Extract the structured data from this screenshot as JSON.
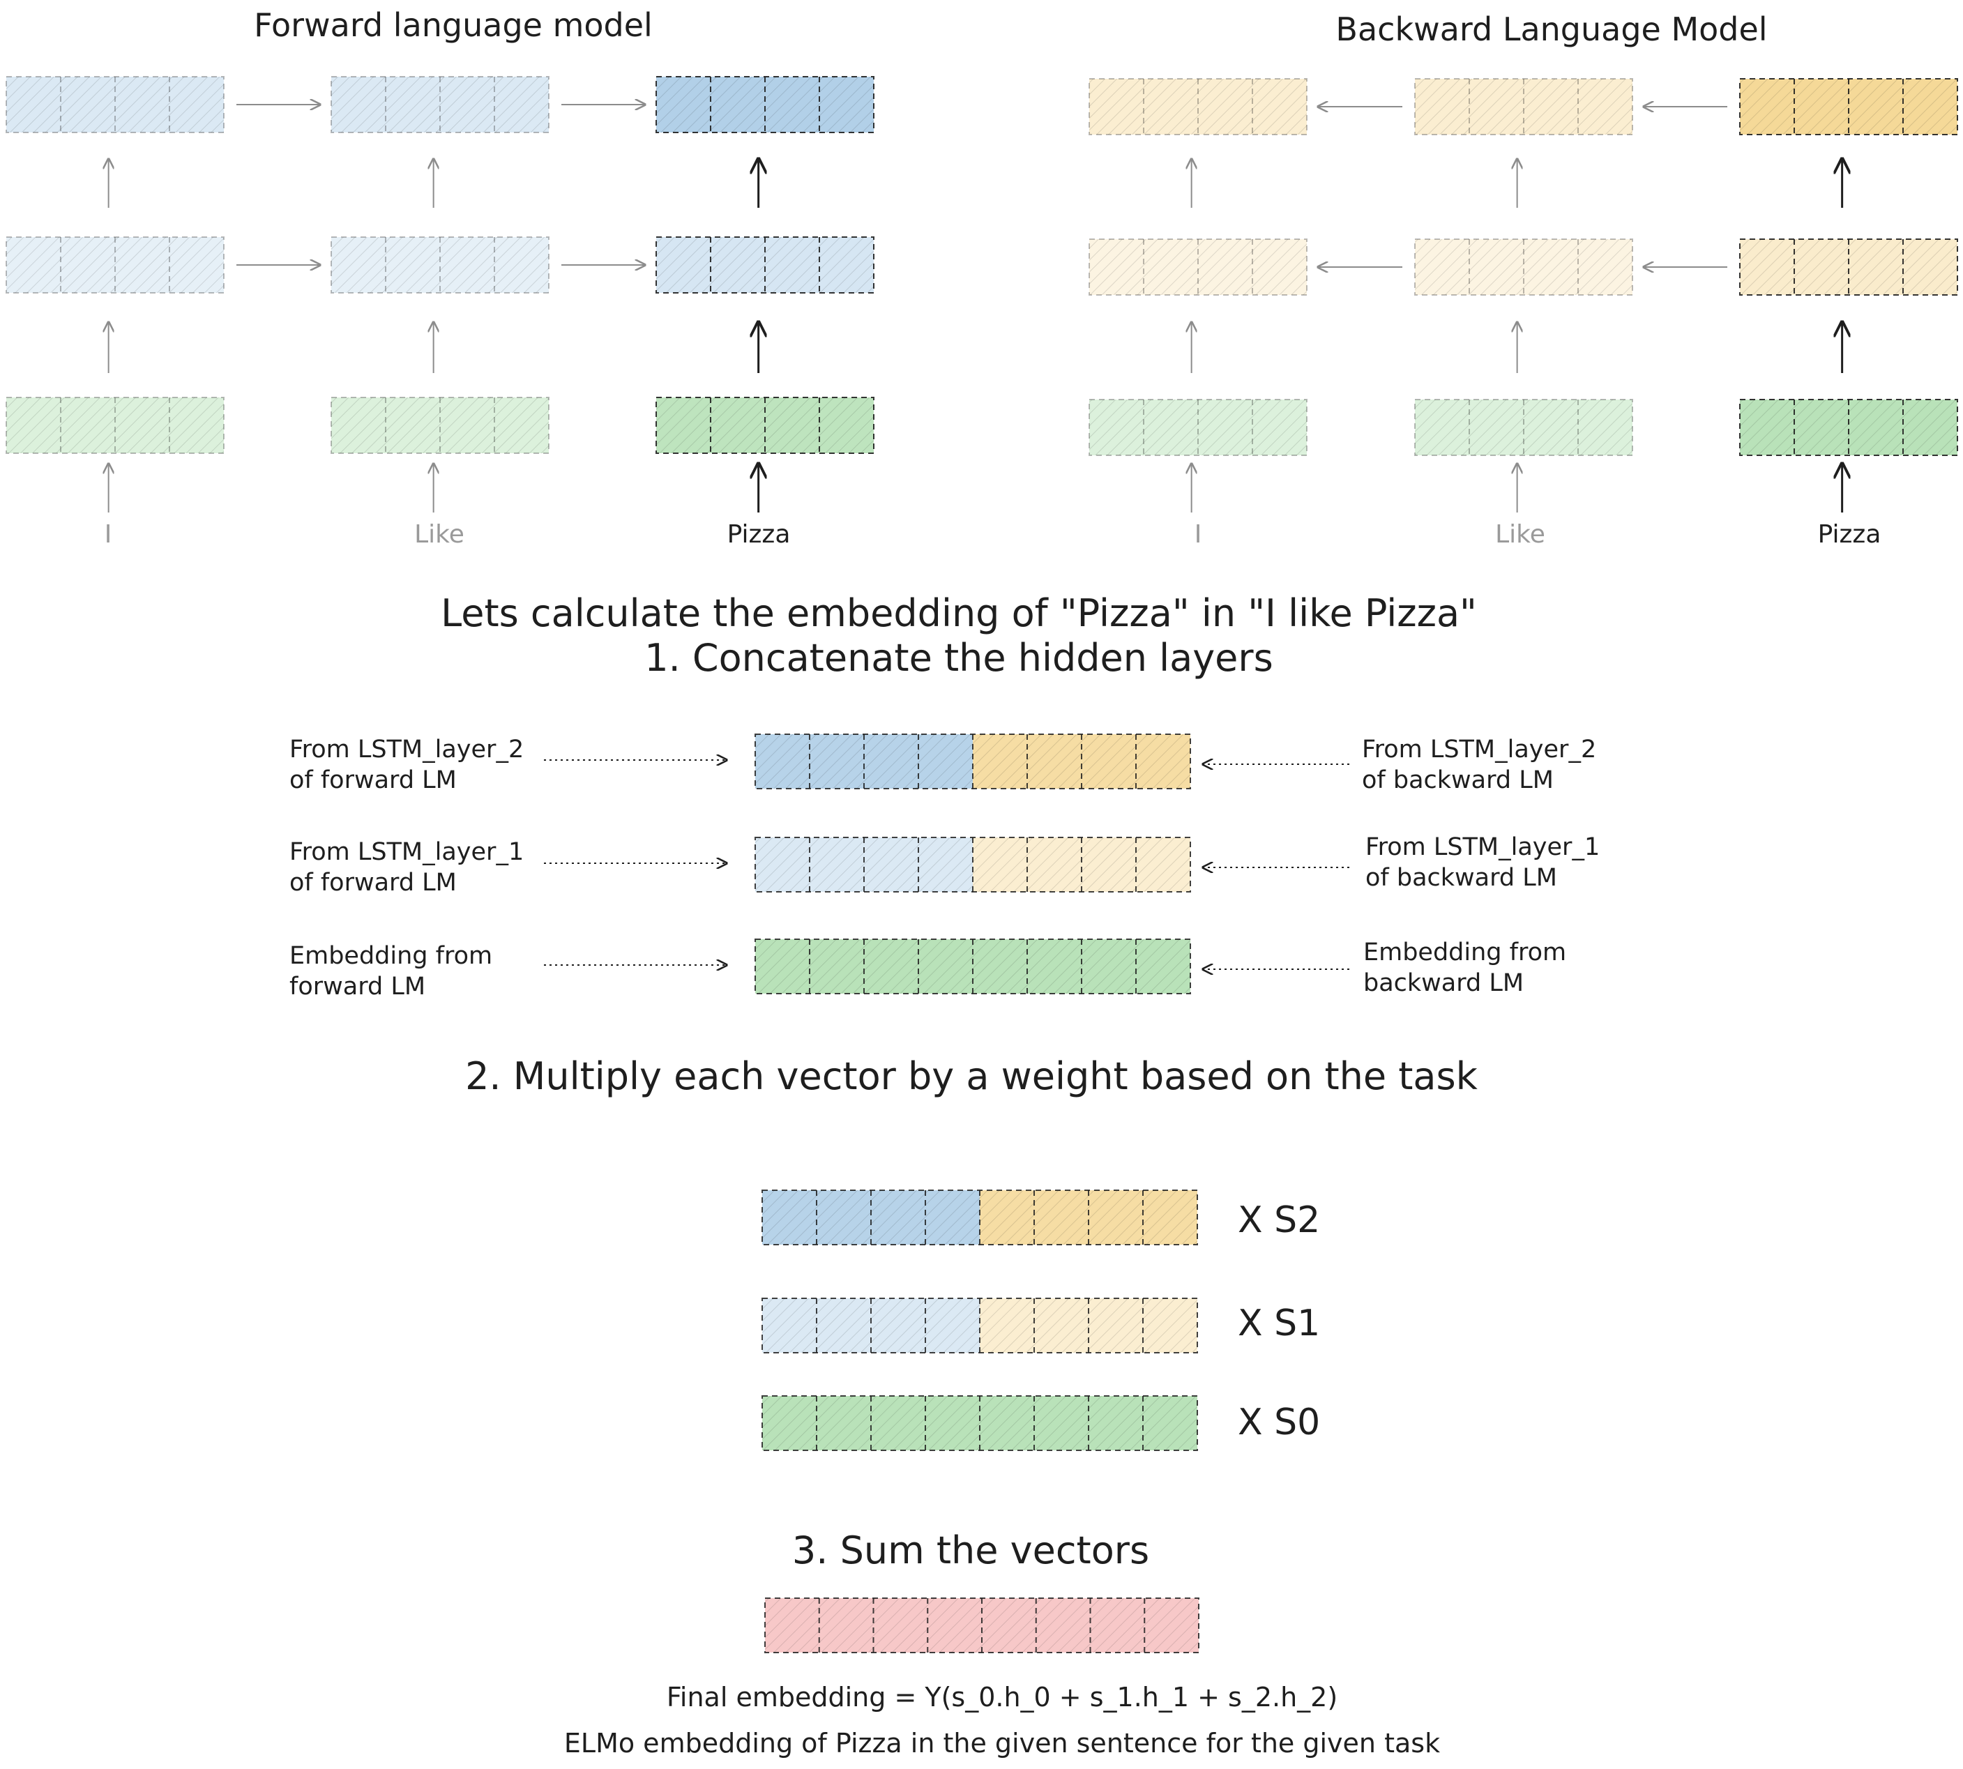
{
  "forward_model": {
    "title": "Forward language model",
    "words": [
      "I",
      "Like",
      "Pizza"
    ]
  },
  "backward_model": {
    "title": "Backward Language Model",
    "words": [
      "I",
      "Like",
      "Pizza"
    ]
  },
  "heading": {
    "line1": "Lets calculate the embedding of \"Pizza\" in \"I like Pizza\"",
    "line2": "1. Concatenate the hidden layers"
  },
  "concat_rows": [
    {
      "left_line1": "From LSTM_layer_2",
      "left_line2": "of forward LM",
      "right_line1": "From LSTM_layer_2",
      "right_line2": "of backward LM"
    },
    {
      "left_line1": "From LSTM_layer_1",
      "left_line2": "of forward LM",
      "right_line1": "From LSTM_layer_1",
      "right_line2": "of backward LM"
    },
    {
      "left_line1": "Embedding from",
      "left_line2": "forward LM",
      "right_line1": "Embedding from",
      "right_line2": "backward LM"
    }
  ],
  "step2": {
    "title": "2. Multiply each vector by a weight based on the task",
    "multipliers": [
      "X  S2",
      "X  S1",
      "X  S0"
    ]
  },
  "step3": {
    "title": "3. Sum the vectors",
    "formula": "Final embedding = Y(s_0.h_0 + s_1.h_1 + s_2.h_2)",
    "caption": "ELMo embedding of Pizza in the given sentence for the given task"
  },
  "colors": {
    "blue": "#a5c8e4",
    "yellow": "#f4d58d",
    "green": "#a8dba8",
    "red": "#f4b6b6",
    "stroke": "#1e1e1e",
    "arrow": "#8c8c8c"
  }
}
